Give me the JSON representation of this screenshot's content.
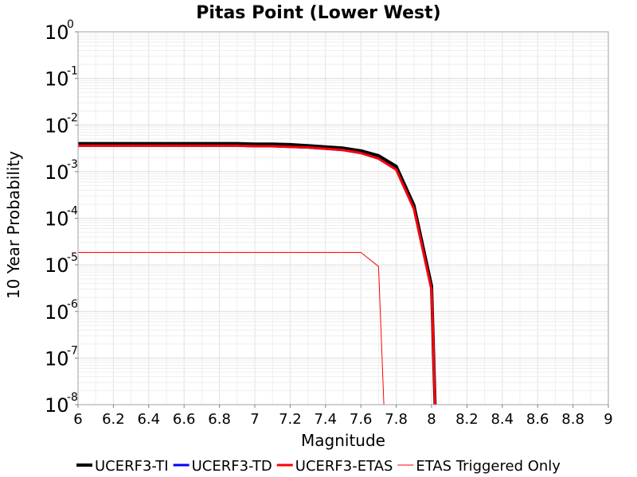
{
  "chart_data": {
    "type": "line",
    "title": "Pitas Point (Lower West)",
    "xlabel": "Magnitude",
    "ylabel": "10 Year Probability",
    "xlim": [
      6,
      9
    ],
    "ylim": [
      1e-08,
      1
    ],
    "yscale": "log",
    "grid": true,
    "legend_position": "bottom",
    "x_ticks": [
      "6",
      "6.2",
      "6.4",
      "6.6",
      "6.8",
      "7",
      "7.2",
      "7.4",
      "7.6",
      "7.8",
      "8",
      "8.2",
      "8.4",
      "8.6",
      "8.8",
      "9"
    ],
    "y_ticks": [
      {
        "base": "10",
        "exp": "0"
      },
      {
        "base": "10",
        "exp": "-1"
      },
      {
        "base": "10",
        "exp": "-2"
      },
      {
        "base": "10",
        "exp": "-3"
      },
      {
        "base": "10",
        "exp": "-4"
      },
      {
        "base": "10",
        "exp": "-5"
      },
      {
        "base": "10",
        "exp": "-6"
      },
      {
        "base": "10",
        "exp": "-7"
      },
      {
        "base": "10",
        "exp": "-8"
      }
    ],
    "series": [
      {
        "name": "UCERF3-TI",
        "color": "#000000",
        "width": 4,
        "x": [
          6.0,
          6.1,
          6.2,
          6.3,
          6.4,
          6.5,
          6.6,
          6.7,
          6.8,
          6.9,
          7.0,
          7.1,
          7.2,
          7.3,
          7.4,
          7.5,
          7.6,
          7.7,
          7.8,
          7.9,
          8.0,
          8.02
        ],
        "y": [
          0.004,
          0.004,
          0.004,
          0.004,
          0.004,
          0.004,
          0.004,
          0.004,
          0.004,
          0.004,
          0.0039,
          0.0039,
          0.0038,
          0.0036,
          0.0034,
          0.0032,
          0.0028,
          0.0022,
          0.0013,
          0.00019,
          3.5e-06,
          1e-08
        ]
      },
      {
        "name": "UCERF3-TD",
        "color": "#0000ff",
        "width": 3,
        "x": [
          6.0,
          6.1,
          6.2,
          6.3,
          6.4,
          6.5,
          6.6,
          6.7,
          6.8,
          6.9,
          7.0,
          7.1,
          7.2,
          7.3,
          7.4,
          7.5,
          7.6,
          7.7,
          7.8,
          7.9,
          8.0,
          8.02
        ],
        "y": [
          0.0036,
          0.0036,
          0.0036,
          0.0036,
          0.0036,
          0.0036,
          0.0036,
          0.0036,
          0.0036,
          0.0036,
          0.0035,
          0.0035,
          0.0034,
          0.0033,
          0.0031,
          0.0029,
          0.0025,
          0.0019,
          0.0011,
          0.00016,
          2.9e-06,
          1e-08
        ]
      },
      {
        "name": "UCERF3-ETAS",
        "color": "#ff0000",
        "width": 3,
        "x": [
          6.0,
          6.1,
          6.2,
          6.3,
          6.4,
          6.5,
          6.6,
          6.7,
          6.8,
          6.9,
          7.0,
          7.1,
          7.2,
          7.3,
          7.4,
          7.5,
          7.6,
          7.7,
          7.8,
          7.9,
          8.0,
          8.02
        ],
        "y": [
          0.0036,
          0.0036,
          0.0036,
          0.0036,
          0.0036,
          0.0036,
          0.0036,
          0.0036,
          0.0036,
          0.0036,
          0.0035,
          0.0035,
          0.0034,
          0.0033,
          0.0031,
          0.0029,
          0.0025,
          0.0019,
          0.0011,
          0.00016,
          2.9e-06,
          1e-08
        ]
      },
      {
        "name": "ETAS Triggered Only",
        "color": "#ff0000",
        "width": 1,
        "x": [
          6.0,
          6.2,
          6.4,
          6.6,
          6.8,
          7.0,
          7.2,
          7.4,
          7.6,
          7.7,
          7.73
        ],
        "y": [
          1.85e-05,
          1.85e-05,
          1.85e-05,
          1.85e-05,
          1.85e-05,
          1.85e-05,
          1.85e-05,
          1.85e-05,
          1.85e-05,
          9.2e-06,
          1e-08
        ]
      }
    ]
  }
}
